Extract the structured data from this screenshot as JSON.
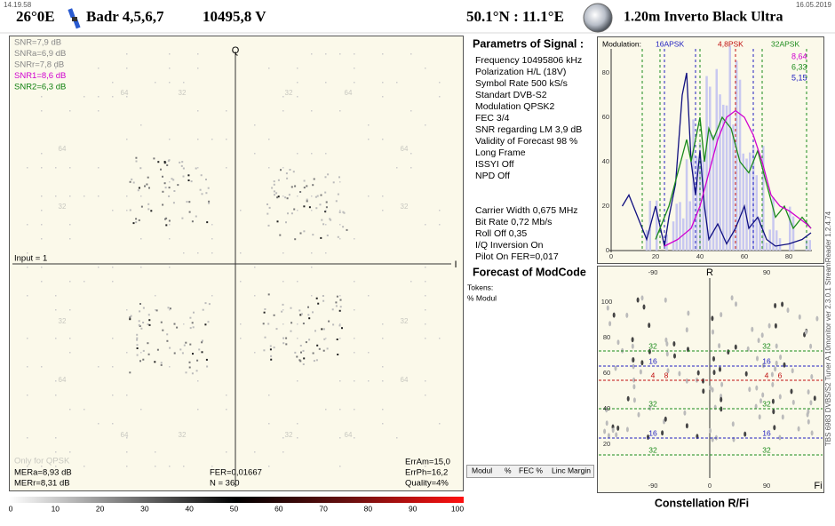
{
  "header": {
    "time": "14.19.58",
    "date": "16.05.2019",
    "satellite_position": "26°0E",
    "satellite_name": "Badr 4,5,6,7",
    "frequency": "10495,8  V",
    "location": "50.1°N : 11.1°E",
    "antenna": "1.20m  Inverto Black Ultra"
  },
  "constellation": {
    "snr_lines": [
      "SNR=7,9 dB",
      "SNRa=6,9 dB",
      "SNRr=7,8 dB",
      "SNR1=8,6 dB",
      "SNR2=6,3 dB"
    ],
    "axis_q": "Q",
    "axis_i": "I",
    "input": "Input = 1",
    "grid_labels": [
      "64",
      "32",
      "32",
      "64",
      "64",
      "64",
      "32",
      "32",
      "32",
      "32",
      "64",
      "64",
      "64",
      "32",
      "32",
      "64"
    ],
    "only_for": "Only for QPSK",
    "mer_a": "MERa=8,93 dB",
    "mer_r": "MERr=8,31 dB",
    "fer": "FER=0,01667",
    "n": "N = 360",
    "err_am": "ErrAm=15,0",
    "err_ph": "ErrPh=16,2",
    "quality": "Quality=4%"
  },
  "parameters": {
    "title": "Parametrs of Signal :",
    "lines": [
      "Frequency  10495806 kHz",
      "Polarization   H/L (18V)",
      "Symbol Rate  500 kS/s",
      "Standart  DVB-S2",
      "Modulation   QPSK2",
      "FEC  3/4",
      "SNR regarding LM  3,9 dB",
      "Validity of Forecast  98 %",
      "Long  Frame",
      "ISSYI  Off",
      "NPD   Off"
    ],
    "carrier_lines": [
      "Carrier Width   0,675 MHz",
      "Bit Rate   0,72 Mb/s",
      "Roll Off   0,35",
      "I/Q Inversion     On",
      "Pilot    On        FER=0,017"
    ],
    "forecast_title": "Forecast of ModCode",
    "tokens": "Tokens:",
    "percent_modul": "% Modul",
    "table_header": [
      "Modul",
      "%",
      "FEC %",
      "Linc Margin"
    ]
  },
  "histogram": {
    "modulation_label": "Modulation:",
    "modes": [
      "16APSK",
      "4,8PSK",
      "32APSK"
    ],
    "values": [
      "8,64",
      "6,33",
      "5,15"
    ],
    "xticks": [
      "0",
      "20",
      "40",
      "60",
      "80"
    ],
    "yticks": [
      "0",
      "20",
      "40",
      "60",
      "80"
    ]
  },
  "polar": {
    "axis_r": "R",
    "axis_fi": "Fi",
    "top_ticks": [
      "-90",
      "90"
    ],
    "bottom_ticks": [
      "-90",
      "0",
      "90"
    ],
    "yticks": [
      "100",
      "80",
      "60",
      "40",
      "20"
    ],
    "ring_labels": [
      "32",
      "32",
      "16",
      "16",
      "4",
      "8",
      "4",
      "6",
      "32",
      "32",
      "16",
      "16",
      "32",
      "32"
    ]
  },
  "scale": {
    "ticks": [
      "0",
      "10",
      "20",
      "30",
      "40",
      "50",
      "60",
      "70",
      "80",
      "90",
      "100"
    ]
  },
  "footer": {
    "title": "Constellation  R/Fi"
  },
  "side_label": "TBS 6983 DVBS/S2 Tuner A   10monitor  ver 2.3.0.1   StreamReader 1.2.4.74"
}
